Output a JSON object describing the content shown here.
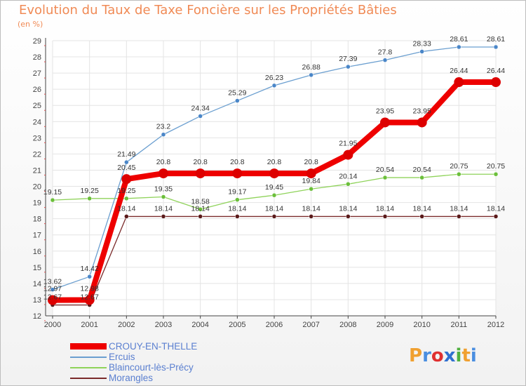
{
  "title": "Evolution du Taux de Taxe Foncière sur les Propriétés Bâties",
  "unit": "(en %)",
  "logo": {
    "letters": [
      "P",
      "r",
      "o",
      "x",
      "i",
      "t",
      "i"
    ],
    "colors": [
      "#f0a030",
      "#4a8ee0",
      "#e03030",
      "#3070d0",
      "#50b040",
      "#f0a030",
      "#4a8ee0"
    ]
  },
  "chart_data": {
    "type": "line",
    "x": [
      "2000",
      "2001",
      "2002",
      "2003",
      "2004",
      "2005",
      "2006",
      "2007",
      "2008",
      "2009",
      "2010",
      "2011",
      "2012"
    ],
    "ylim": [
      12,
      29
    ],
    "yticks": [
      12,
      13,
      14,
      15,
      16,
      17,
      18,
      19,
      20,
      21,
      22,
      23,
      24,
      25,
      26,
      27,
      28,
      29
    ],
    "grid": true,
    "series": [
      {
        "name": "CROUY-EN-THELLE",
        "color": "#ee0000",
        "width": 8,
        "markers": 7,
        "values": [
          12.97,
          12.98,
          20.45,
          20.8,
          20.8,
          20.8,
          20.8,
          20.8,
          21.95,
          23.95,
          23.95,
          26.44,
          26.44
        ],
        "labels": [
          "12.97",
          "12.98",
          "20.45",
          "20.8",
          "20.8",
          "20.8",
          "20.8",
          "20.8",
          "21.95",
          "23.95",
          "23.95",
          "26.44",
          "26.44"
        ]
      },
      {
        "name": "Ercuis",
        "color": "#6b9fd0",
        "width": 1.3,
        "markers": 3,
        "values": [
          13.62,
          14.42,
          21.49,
          23.2,
          24.34,
          25.29,
          26.23,
          26.88,
          27.39,
          27.8,
          28.33,
          28.61,
          28.61
        ],
        "labels": [
          "13.62",
          "14.42",
          "21.49",
          "23.2",
          "24.34",
          "25.29",
          "26.23",
          "26.88",
          "27.39",
          "27.8",
          "28.33",
          "28.61",
          "28.61"
        ]
      },
      {
        "name": "Blaincourt-lès-Précy",
        "color": "#8fd35a",
        "width": 1.3,
        "markers": 3,
        "values": [
          19.15,
          19.25,
          19.25,
          19.35,
          18.58,
          19.17,
          19.45,
          19.84,
          20.14,
          20.54,
          20.54,
          20.75,
          20.75
        ],
        "labels": [
          "19.15",
          "19.25",
          "19.25",
          "19.35",
          "18.58",
          "19.17",
          "19.45",
          "19.84",
          "20.14",
          "20.54",
          "20.54",
          "20.75",
          "20.75"
        ]
      },
      {
        "name": "Morangles",
        "color": "#7a2a2a",
        "width": 1.3,
        "markers": 3,
        "values": [
          12.67,
          12.67,
          18.14,
          18.14,
          18.14,
          18.14,
          18.14,
          18.14,
          18.14,
          18.14,
          18.14,
          18.14,
          18.14
        ],
        "labels": [
          "12.67",
          "12.67",
          "18.14",
          "18.14",
          "18.14",
          "18.14",
          "18.14",
          "18.14",
          "18.14",
          "18.14",
          "18.14",
          "18.14",
          "18.14"
        ]
      }
    ],
    "legend": "bottom-left"
  }
}
